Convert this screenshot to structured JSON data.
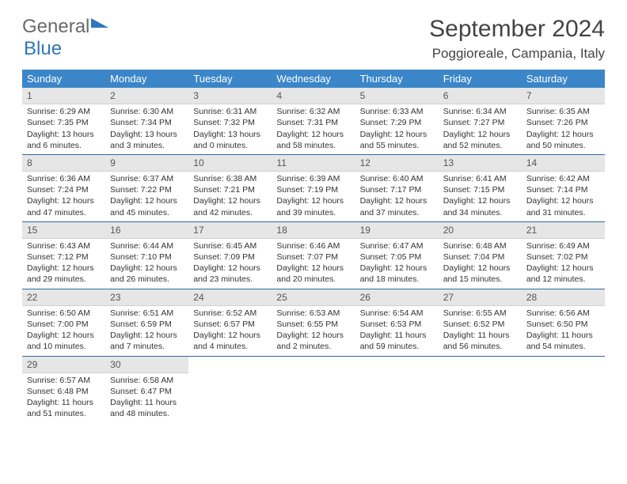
{
  "logo": {
    "text_gray": "General",
    "text_blue": "Blue"
  },
  "title": "September 2024",
  "location": "Poggioreale, Campania, Italy",
  "colors": {
    "header_bg": "#3b86c8",
    "header_text": "#ffffff",
    "daynum_bg": "#e6e6e6",
    "row_divider": "#2f6aa3",
    "logo_gray": "#6a6a6a",
    "logo_blue": "#2f77bc"
  },
  "day_headers": [
    "Sunday",
    "Monday",
    "Tuesday",
    "Wednesday",
    "Thursday",
    "Friday",
    "Saturday"
  ],
  "weeks": [
    [
      {
        "num": "1",
        "sunrise": "Sunrise: 6:29 AM",
        "sunset": "Sunset: 7:35 PM",
        "daylight": "Daylight: 13 hours and 6 minutes."
      },
      {
        "num": "2",
        "sunrise": "Sunrise: 6:30 AM",
        "sunset": "Sunset: 7:34 PM",
        "daylight": "Daylight: 13 hours and 3 minutes."
      },
      {
        "num": "3",
        "sunrise": "Sunrise: 6:31 AM",
        "sunset": "Sunset: 7:32 PM",
        "daylight": "Daylight: 13 hours and 0 minutes."
      },
      {
        "num": "4",
        "sunrise": "Sunrise: 6:32 AM",
        "sunset": "Sunset: 7:31 PM",
        "daylight": "Daylight: 12 hours and 58 minutes."
      },
      {
        "num": "5",
        "sunrise": "Sunrise: 6:33 AM",
        "sunset": "Sunset: 7:29 PM",
        "daylight": "Daylight: 12 hours and 55 minutes."
      },
      {
        "num": "6",
        "sunrise": "Sunrise: 6:34 AM",
        "sunset": "Sunset: 7:27 PM",
        "daylight": "Daylight: 12 hours and 52 minutes."
      },
      {
        "num": "7",
        "sunrise": "Sunrise: 6:35 AM",
        "sunset": "Sunset: 7:26 PM",
        "daylight": "Daylight: 12 hours and 50 minutes."
      }
    ],
    [
      {
        "num": "8",
        "sunrise": "Sunrise: 6:36 AM",
        "sunset": "Sunset: 7:24 PM",
        "daylight": "Daylight: 12 hours and 47 minutes."
      },
      {
        "num": "9",
        "sunrise": "Sunrise: 6:37 AM",
        "sunset": "Sunset: 7:22 PM",
        "daylight": "Daylight: 12 hours and 45 minutes."
      },
      {
        "num": "10",
        "sunrise": "Sunrise: 6:38 AM",
        "sunset": "Sunset: 7:21 PM",
        "daylight": "Daylight: 12 hours and 42 minutes."
      },
      {
        "num": "11",
        "sunrise": "Sunrise: 6:39 AM",
        "sunset": "Sunset: 7:19 PM",
        "daylight": "Daylight: 12 hours and 39 minutes."
      },
      {
        "num": "12",
        "sunrise": "Sunrise: 6:40 AM",
        "sunset": "Sunset: 7:17 PM",
        "daylight": "Daylight: 12 hours and 37 minutes."
      },
      {
        "num": "13",
        "sunrise": "Sunrise: 6:41 AM",
        "sunset": "Sunset: 7:15 PM",
        "daylight": "Daylight: 12 hours and 34 minutes."
      },
      {
        "num": "14",
        "sunrise": "Sunrise: 6:42 AM",
        "sunset": "Sunset: 7:14 PM",
        "daylight": "Daylight: 12 hours and 31 minutes."
      }
    ],
    [
      {
        "num": "15",
        "sunrise": "Sunrise: 6:43 AM",
        "sunset": "Sunset: 7:12 PM",
        "daylight": "Daylight: 12 hours and 29 minutes."
      },
      {
        "num": "16",
        "sunrise": "Sunrise: 6:44 AM",
        "sunset": "Sunset: 7:10 PM",
        "daylight": "Daylight: 12 hours and 26 minutes."
      },
      {
        "num": "17",
        "sunrise": "Sunrise: 6:45 AM",
        "sunset": "Sunset: 7:09 PM",
        "daylight": "Daylight: 12 hours and 23 minutes."
      },
      {
        "num": "18",
        "sunrise": "Sunrise: 6:46 AM",
        "sunset": "Sunset: 7:07 PM",
        "daylight": "Daylight: 12 hours and 20 minutes."
      },
      {
        "num": "19",
        "sunrise": "Sunrise: 6:47 AM",
        "sunset": "Sunset: 7:05 PM",
        "daylight": "Daylight: 12 hours and 18 minutes."
      },
      {
        "num": "20",
        "sunrise": "Sunrise: 6:48 AM",
        "sunset": "Sunset: 7:04 PM",
        "daylight": "Daylight: 12 hours and 15 minutes."
      },
      {
        "num": "21",
        "sunrise": "Sunrise: 6:49 AM",
        "sunset": "Sunset: 7:02 PM",
        "daylight": "Daylight: 12 hours and 12 minutes."
      }
    ],
    [
      {
        "num": "22",
        "sunrise": "Sunrise: 6:50 AM",
        "sunset": "Sunset: 7:00 PM",
        "daylight": "Daylight: 12 hours and 10 minutes."
      },
      {
        "num": "23",
        "sunrise": "Sunrise: 6:51 AM",
        "sunset": "Sunset: 6:59 PM",
        "daylight": "Daylight: 12 hours and 7 minutes."
      },
      {
        "num": "24",
        "sunrise": "Sunrise: 6:52 AM",
        "sunset": "Sunset: 6:57 PM",
        "daylight": "Daylight: 12 hours and 4 minutes."
      },
      {
        "num": "25",
        "sunrise": "Sunrise: 6:53 AM",
        "sunset": "Sunset: 6:55 PM",
        "daylight": "Daylight: 12 hours and 2 minutes."
      },
      {
        "num": "26",
        "sunrise": "Sunrise: 6:54 AM",
        "sunset": "Sunset: 6:53 PM",
        "daylight": "Daylight: 11 hours and 59 minutes."
      },
      {
        "num": "27",
        "sunrise": "Sunrise: 6:55 AM",
        "sunset": "Sunset: 6:52 PM",
        "daylight": "Daylight: 11 hours and 56 minutes."
      },
      {
        "num": "28",
        "sunrise": "Sunrise: 6:56 AM",
        "sunset": "Sunset: 6:50 PM",
        "daylight": "Daylight: 11 hours and 54 minutes."
      }
    ],
    [
      {
        "num": "29",
        "sunrise": "Sunrise: 6:57 AM",
        "sunset": "Sunset: 6:48 PM",
        "daylight": "Daylight: 11 hours and 51 minutes."
      },
      {
        "num": "30",
        "sunrise": "Sunrise: 6:58 AM",
        "sunset": "Sunset: 6:47 PM",
        "daylight": "Daylight: 11 hours and 48 minutes."
      },
      null,
      null,
      null,
      null,
      null
    ]
  ]
}
